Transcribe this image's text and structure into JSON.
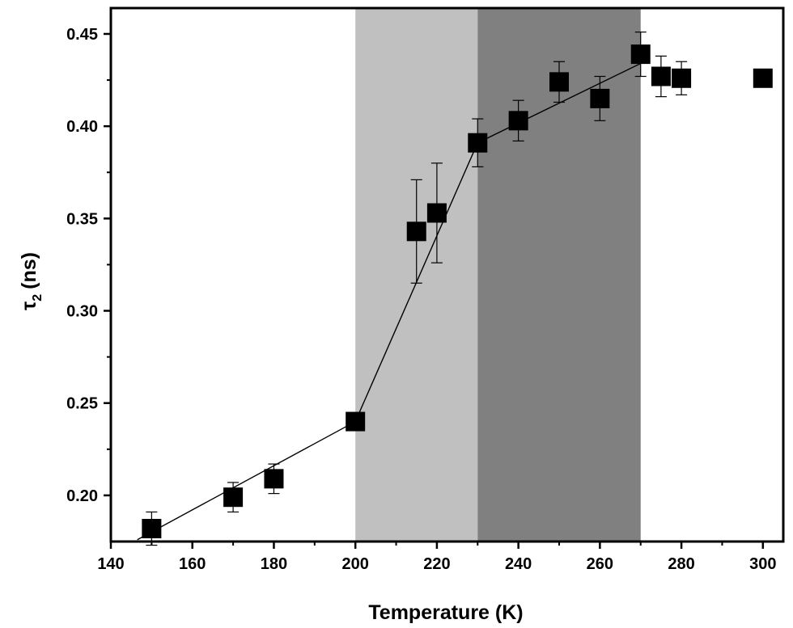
{
  "chart_data": {
    "type": "scatter",
    "xlabel": "Temperature (K)",
    "ylabel": "(ns)",
    "ylabel_symbol": "τ",
    "ylabel_subscript": "2",
    "xlim": [
      140,
      305
    ],
    "ylim": [
      0.175,
      0.464
    ],
    "xticks": [
      140,
      160,
      180,
      200,
      220,
      240,
      260,
      280,
      300
    ],
    "xtick_labels": [
      "140",
      "160",
      "180",
      "200",
      "220",
      "240",
      "260",
      "280",
      "300"
    ],
    "yticks": [
      0.2,
      0.25,
      0.3,
      0.35,
      0.4,
      0.45
    ],
    "ytick_labels": [
      "0.20",
      "0.25",
      "0.30",
      "0.35",
      "0.40",
      "0.45"
    ],
    "grid": false,
    "shaded_regions": [
      {
        "x_start": 200,
        "x_end": 230,
        "color": "#c0c0c0"
      },
      {
        "x_start": 230,
        "x_end": 270,
        "color": "#808080"
      }
    ],
    "series": [
      {
        "marker": "square",
        "color": "#000000",
        "points": [
          {
            "x": 150,
            "y": 0.182,
            "err": 0.009
          },
          {
            "x": 170,
            "y": 0.199,
            "err": 0.008
          },
          {
            "x": 180,
            "y": 0.209,
            "err": 0.008
          },
          {
            "x": 200,
            "y": 0.24,
            "err": 0.0
          },
          {
            "x": 215,
            "y": 0.343,
            "err": 0.028
          },
          {
            "x": 220,
            "y": 0.353,
            "err": 0.027
          },
          {
            "x": 230,
            "y": 0.391,
            "err": 0.013
          },
          {
            "x": 240,
            "y": 0.403,
            "err": 0.011
          },
          {
            "x": 250,
            "y": 0.424,
            "err": 0.011
          },
          {
            "x": 260,
            "y": 0.415,
            "err": 0.012
          },
          {
            "x": 270,
            "y": 0.439,
            "err": 0.012
          },
          {
            "x": 275,
            "y": 0.427,
            "err": 0.011
          },
          {
            "x": 280,
            "y": 0.426,
            "err": 0.009
          },
          {
            "x": 300,
            "y": 0.426,
            "err": 0.0
          }
        ]
      }
    ],
    "fit_lines": [
      {
        "x": [
          146.5,
          200
        ],
        "y": [
          0.176,
          0.24
        ]
      },
      {
        "x": [
          200,
          230
        ],
        "y": [
          0.24,
          0.391
        ]
      },
      {
        "x": [
          230,
          270
        ],
        "y": [
          0.391,
          0.434
        ]
      }
    ]
  }
}
